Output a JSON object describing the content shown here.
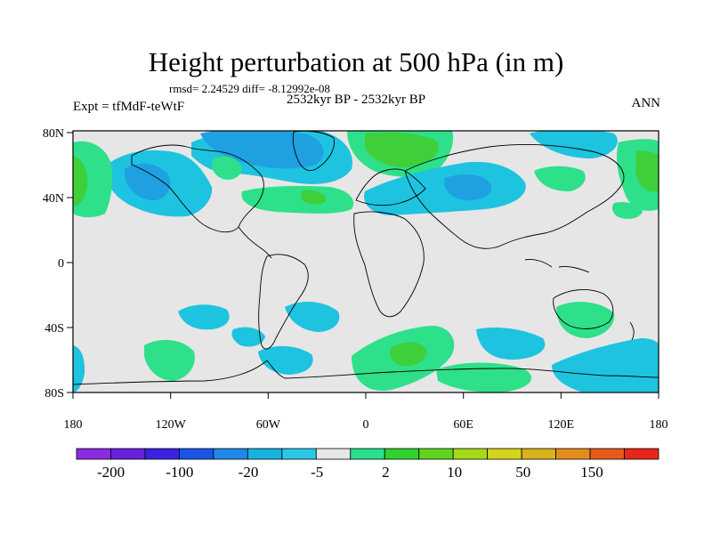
{
  "title": "Height perturbation at 500 hPa (in m)",
  "stats_text": "rmsd= 2.24529 diff= -8.12992e-08",
  "period": "2532kyr BP - 2532kyr BP",
  "experiment": "Expt = tfMdF-teWtF",
  "season": "ANN",
  "axes": {
    "x_ticks": [
      "180",
      "120W",
      "60W",
      "0",
      "60E",
      "120E",
      "180"
    ],
    "y_ticks": [
      "80N",
      "40N",
      "0",
      "40S",
      "80S"
    ]
  },
  "colorbar": {
    "colors": [
      "#8a2be2",
      "#6a1fdc",
      "#3a22e0",
      "#1a55e8",
      "#1f88e6",
      "#16b2e0",
      "#2ac7e6",
      "#e6e6e6",
      "#2adf8c",
      "#30d030",
      "#5fd41f",
      "#a4da1a",
      "#d6d41a",
      "#d9b21a",
      "#e48c1c",
      "#e85a1a",
      "#e8261a"
    ],
    "labels": [
      "-200",
      "-100",
      "-20",
      "-5",
      "2",
      "10",
      "50",
      "150"
    ]
  },
  "map_colors": {
    "background": "#e6e6e6",
    "light_blue": "#1ec3e0",
    "mid_blue": "#1fa0e0",
    "light_green": "#2ee08a",
    "mid_green": "#3fcf3a",
    "coast": "#000000"
  }
}
